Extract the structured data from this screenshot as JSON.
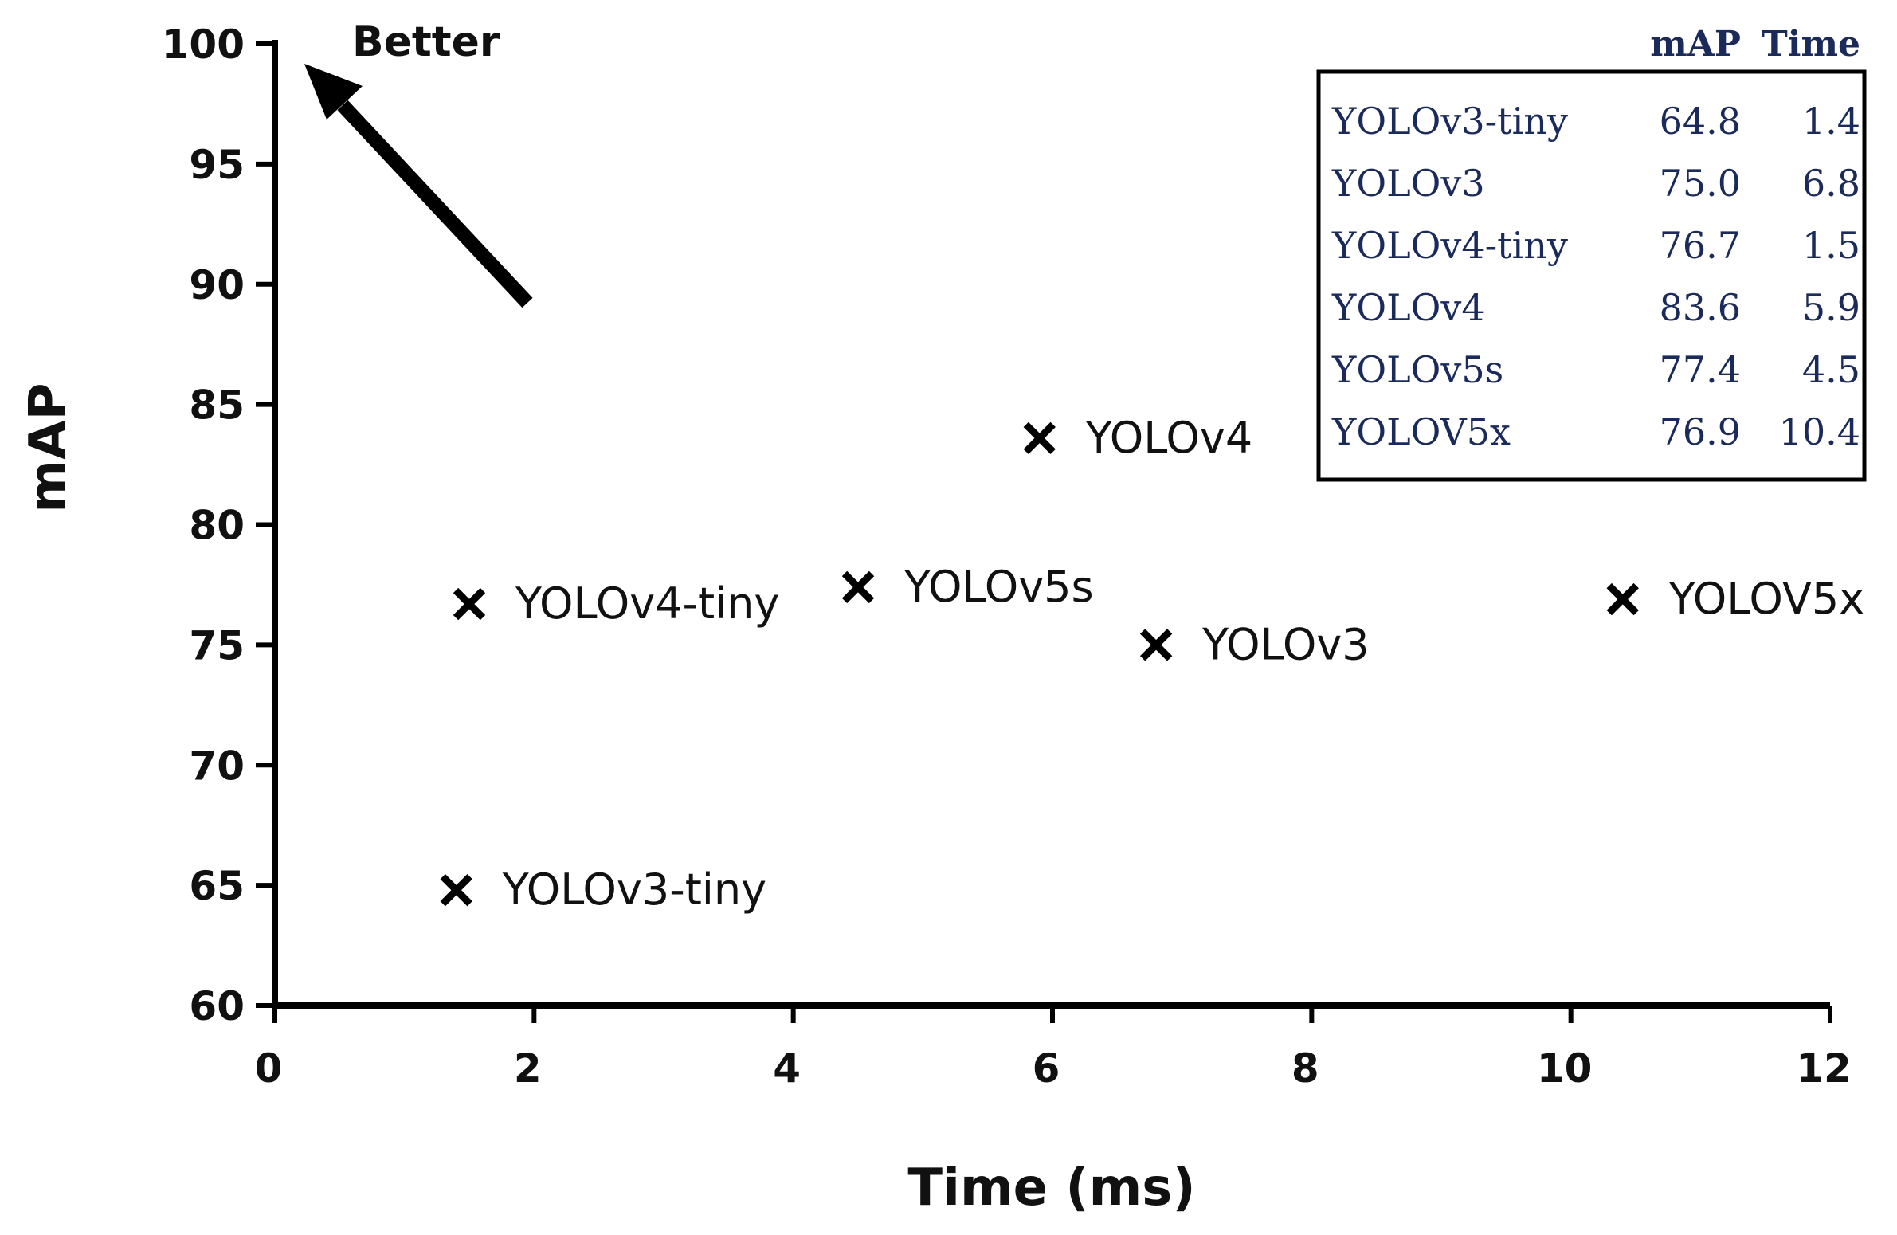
{
  "chart_data": {
    "type": "scatter",
    "xlabel": "Time (ms)",
    "ylabel": "mAP",
    "xlim": [
      0,
      12
    ],
    "ylim": [
      60,
      100
    ],
    "x_ticks": [
      "0",
      "2",
      "4",
      "6",
      "8",
      "10",
      "12"
    ],
    "y_ticks": [
      "60",
      "65",
      "70",
      "75",
      "80",
      "85",
      "90",
      "95",
      "100"
    ],
    "grid": false,
    "marker": "x",
    "points": [
      {
        "label": "YOLOv3-tiny",
        "x": 1.4,
        "y": 64.8
      },
      {
        "label": "YOLOv3",
        "x": 6.8,
        "y": 75.0
      },
      {
        "label": "YOLOv4-tiny",
        "x": 1.5,
        "y": 76.7
      },
      {
        "label": "YOLOv4",
        "x": 5.9,
        "y": 83.6
      },
      {
        "label": "YOLOv5s",
        "x": 4.5,
        "y": 77.4
      },
      {
        "label": "YOLOV5x",
        "x": 10.4,
        "y": 76.9
      }
    ],
    "annotation": {
      "text": "Better",
      "arrow": "toward top-left"
    },
    "table": {
      "placement": "top-right",
      "headers": [
        "mAP",
        "Time"
      ],
      "rows": [
        [
          "YOLOv3-tiny",
          "64.8",
          "1.4"
        ],
        [
          "YOLOv3",
          "75.0",
          "6.8"
        ],
        [
          "YOLOv4-tiny",
          "76.7",
          "1.5"
        ],
        [
          "YOLOv4",
          "83.6",
          "5.9"
        ],
        [
          "YOLOv5s",
          "77.4",
          "4.5"
        ],
        [
          "YOLOV5x",
          "76.9",
          "10.4"
        ]
      ]
    }
  }
}
